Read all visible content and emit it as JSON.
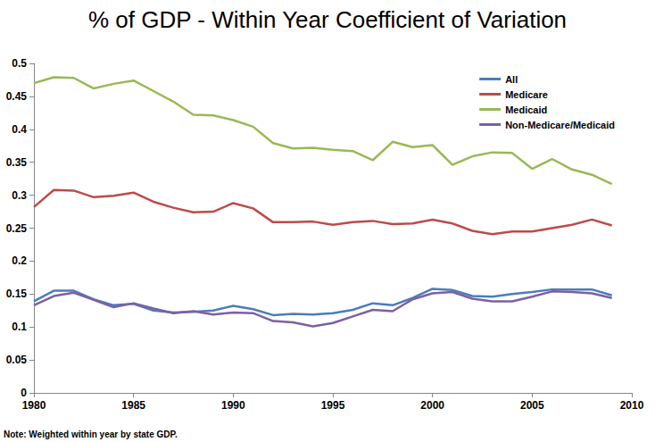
{
  "chart_data": {
    "type": "line",
    "title": "% of GDP - Within Year Coefficient of Variation",
    "annotations": [
      "Note: Weighted within year by state GDP."
    ],
    "x": [
      1980,
      1981,
      1982,
      1983,
      1984,
      1985,
      1986,
      1987,
      1988,
      1989,
      1990,
      1991,
      1992,
      1993,
      1994,
      1995,
      1996,
      1997,
      1998,
      1999,
      2000,
      2001,
      2002,
      2003,
      2004,
      2005,
      2006,
      2007,
      2008,
      2009
    ],
    "series": [
      {
        "name": "All",
        "color": "#4a7ebb",
        "values": [
          0.139,
          0.155,
          0.155,
          0.142,
          0.133,
          0.135,
          0.125,
          0.122,
          0.123,
          0.125,
          0.132,
          0.127,
          0.118,
          0.12,
          0.119,
          0.121,
          0.126,
          0.136,
          0.133,
          0.144,
          0.158,
          0.156,
          0.147,
          0.146,
          0.15,
          0.153,
          0.157,
          0.157,
          0.157,
          0.148
        ]
      },
      {
        "name": "Medicare",
        "color": "#be4b48",
        "values": [
          0.282,
          0.308,
          0.307,
          0.297,
          0.299,
          0.304,
          0.29,
          0.281,
          0.274,
          0.275,
          0.288,
          0.28,
          0.259,
          0.259,
          0.26,
          0.255,
          0.259,
          0.261,
          0.256,
          0.257,
          0.263,
          0.257,
          0.246,
          0.241,
          0.245,
          0.245,
          0.25,
          0.255,
          0.263,
          0.254
        ]
      },
      {
        "name": "Medicaid",
        "color": "#98b954",
        "values": [
          0.47,
          0.479,
          0.478,
          0.462,
          0.469,
          0.474,
          0.458,
          0.442,
          0.422,
          0.421,
          0.414,
          0.404,
          0.379,
          0.371,
          0.372,
          0.369,
          0.367,
          0.353,
          0.381,
          0.373,
          0.376,
          0.346,
          0.359,
          0.365,
          0.364,
          0.34,
          0.355,
          0.339,
          0.331,
          0.317
        ]
      },
      {
        "name": "Non-Medicare/Medicaid",
        "color": "#7d60a0",
        "values": [
          0.133,
          0.147,
          0.152,
          0.141,
          0.13,
          0.136,
          0.128,
          0.121,
          0.124,
          0.119,
          0.122,
          0.121,
          0.109,
          0.107,
          0.101,
          0.106,
          0.116,
          0.126,
          0.124,
          0.142,
          0.151,
          0.153,
          0.143,
          0.139,
          0.139,
          0.146,
          0.154,
          0.153,
          0.151,
          0.144
        ]
      }
    ],
    "xlim": [
      1980,
      2010
    ],
    "xticks": [
      1980,
      1985,
      1990,
      1995,
      2000,
      2005,
      2010
    ],
    "ylim": [
      0,
      0.5
    ],
    "yticks": [
      0,
      0.05,
      0.1,
      0.15,
      0.2,
      0.25,
      0.3,
      0.35,
      0.4,
      0.45,
      0.5
    ],
    "grid": false,
    "legend": "top-right"
  }
}
